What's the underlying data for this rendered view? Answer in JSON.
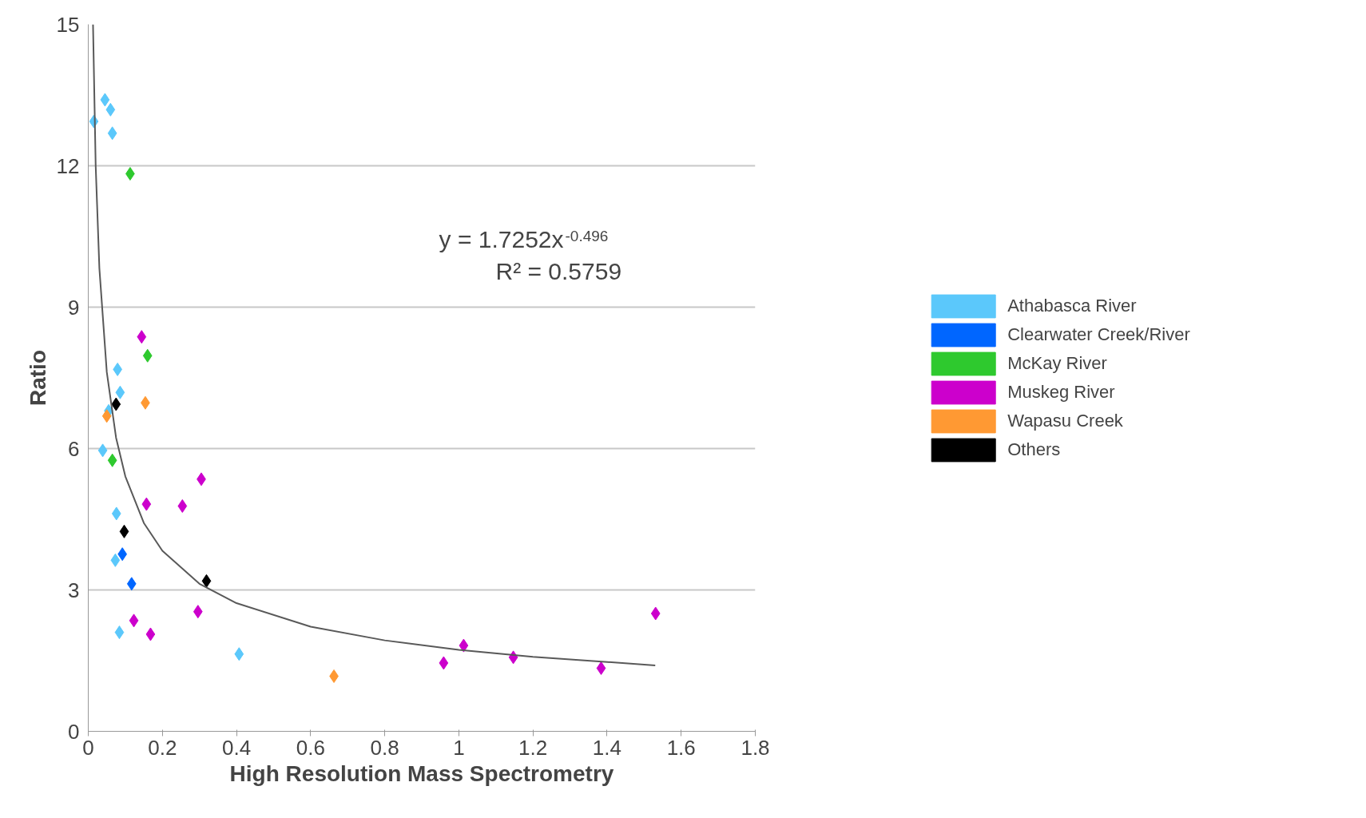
{
  "chart_data": {
    "type": "scatter",
    "xlabel": "High Resolution Mass Spectrometry",
    "ylabel": "Ratio",
    "xlim": [
      0,
      1.8
    ],
    "xticks": [
      0,
      0.2,
      0.4,
      0.6,
      0.8,
      1,
      1.2,
      1.4,
      1.6,
      1.8
    ],
    "ylim": [
      0,
      15
    ],
    "yticks": [
      0,
      3,
      6,
      9,
      12,
      15
    ],
    "grid": "y",
    "legend": "right",
    "marker": "diamond",
    "annotations": [
      "y = 1.7252x$^{-0.496}$",
      "R² = 0.5759"
    ],
    "series": [
      {
        "name": "Athabasca River",
        "color": "#5bc8fb",
        "x": [
          0.015,
          0.045,
          0.06,
          0.065,
          0.079,
          0.086,
          0.055,
          0.039,
          0.076,
          0.073,
          0.084,
          0.407
        ],
        "values": [
          12.94,
          13.4,
          13.19,
          12.69,
          7.68,
          7.19,
          6.8,
          5.96,
          4.62,
          3.63,
          2.1,
          1.64
        ]
      },
      {
        "name": "Clearwater Creek/River",
        "color": "#0066ff",
        "x": [
          0.092,
          0.117
        ],
        "values": [
          3.76,
          3.13
        ]
      },
      {
        "name": "McKay River",
        "color": "#2ec92e",
        "x": [
          0.113,
          0.16,
          0.065
        ],
        "values": [
          11.83,
          7.97,
          5.75
        ]
      },
      {
        "name": "Muskeg River",
        "color": "#cc00cc",
        "x": [
          0.144,
          0.157,
          0.254,
          0.305,
          0.296,
          0.123,
          0.168,
          0.959,
          1.013,
          1.147,
          1.384,
          1.531
        ],
        "values": [
          8.37,
          4.82,
          4.78,
          5.35,
          2.54,
          2.35,
          2.06,
          1.45,
          1.82,
          1.57,
          1.34,
          2.5
        ]
      },
      {
        "name": "Wapasu Creek",
        "color": "#ff9933",
        "x": [
          0.05,
          0.154,
          0.663
        ],
        "values": [
          6.69,
          6.97,
          1.17
        ]
      },
      {
        "name": "Others",
        "color": "#000000",
        "x": [
          0.075,
          0.097,
          0.319
        ],
        "values": [
          6.94,
          4.24,
          3.19
        ]
      },
      {
        "type": "line",
        "marker": "none",
        "color": "#595959",
        "x": [
          0.0128,
          0.02,
          0.03,
          0.05,
          0.075,
          0.1,
          0.15,
          0.2,
          0.3,
          0.4,
          0.6,
          0.8,
          1.0,
          1.2,
          1.53
        ],
        "values": [
          15.0,
          12.0,
          9.82,
          7.62,
          6.23,
          5.41,
          4.42,
          3.83,
          3.13,
          2.72,
          2.22,
          1.93,
          1.73,
          1.58,
          1.4
        ]
      }
    ]
  }
}
